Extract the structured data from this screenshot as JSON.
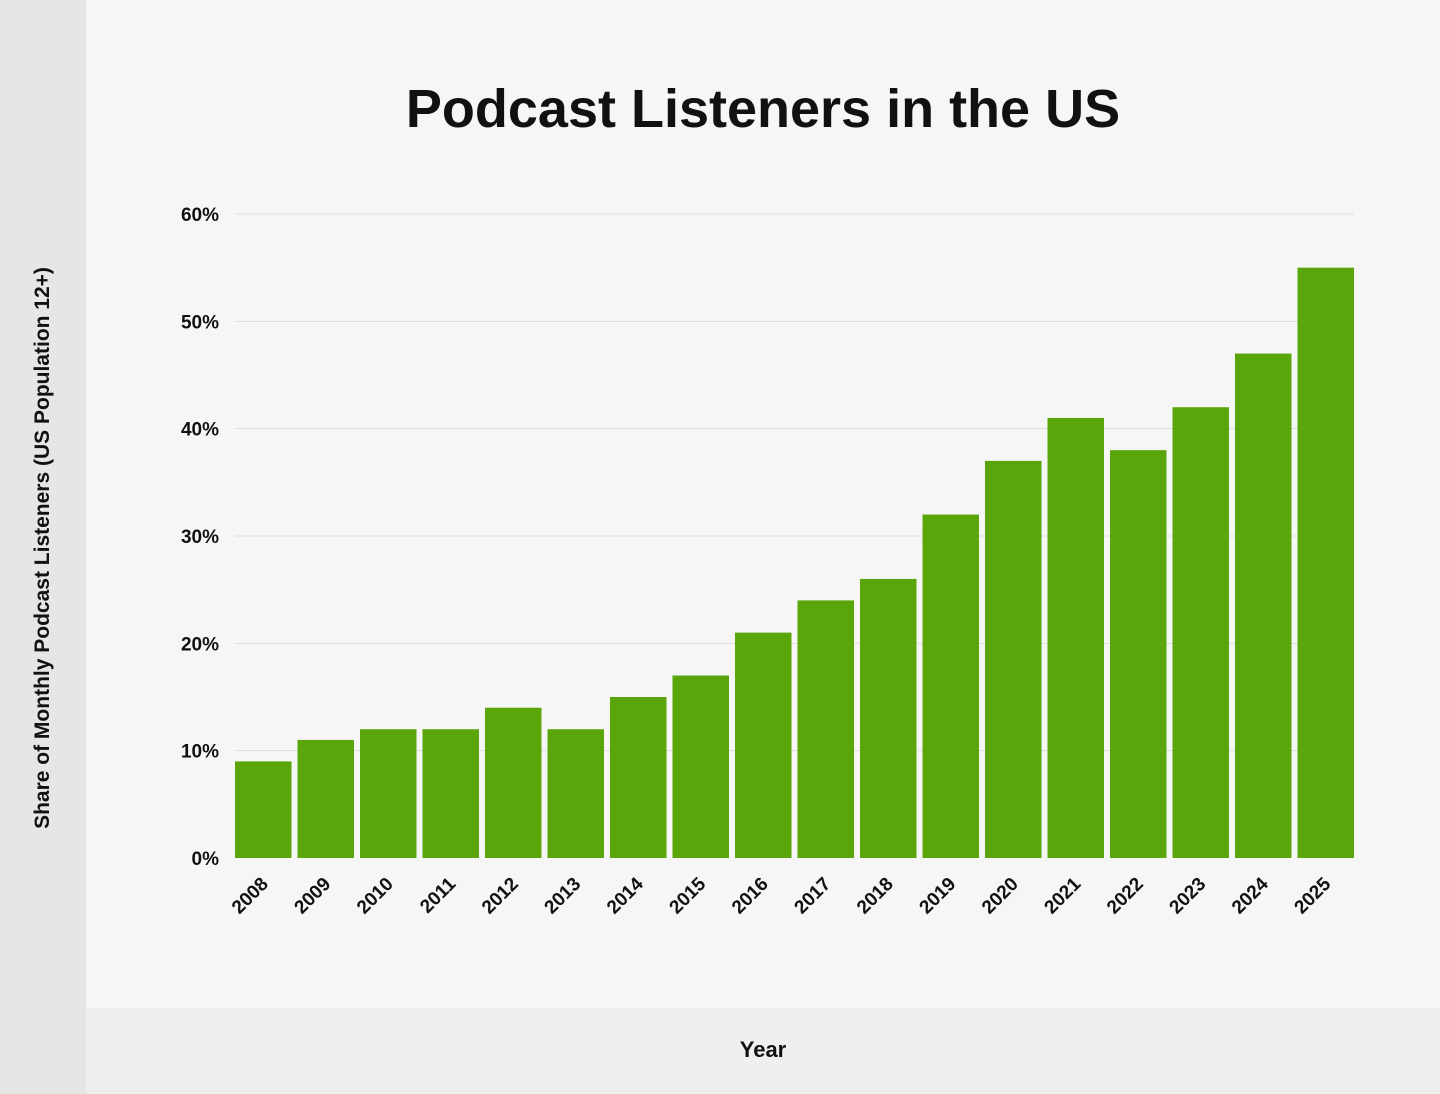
{
  "chart_data": {
    "type": "bar",
    "title": "Podcast Listeners in the US",
    "xlabel": "Year",
    "ylabel": "Share of Monthly Podcast Listeners (US Population 12+)",
    "categories": [
      "2008",
      "2009",
      "2010",
      "2011",
      "2012",
      "2013",
      "2014",
      "2015",
      "2016",
      "2017",
      "2018",
      "2019",
      "2020",
      "2021",
      "2022",
      "2023",
      "2024",
      "2025"
    ],
    "values": [
      9,
      11,
      12,
      12,
      14,
      12,
      15,
      17,
      21,
      24,
      26,
      32,
      37,
      41,
      38,
      42,
      47,
      55
    ],
    "ylim": [
      0,
      60
    ],
    "yticks": [
      0,
      10,
      20,
      30,
      40,
      50,
      60
    ],
    "ytick_format": "%",
    "grid": true,
    "colors": {
      "bar": "#5aa60a",
      "grid": "#dddddd"
    }
  }
}
